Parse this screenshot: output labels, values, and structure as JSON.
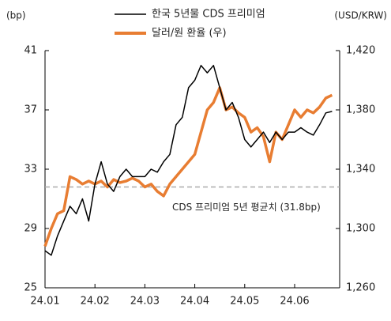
{
  "chart_data": {
    "type": "line",
    "y_unit_label": "(bp)",
    "y2_unit_label": "(USD/KRW)",
    "categories": [
      "24.01",
      null,
      null,
      null,
      null,
      null,
      null,
      null,
      "24.02",
      null,
      null,
      null,
      null,
      null,
      null,
      null,
      "24.03",
      null,
      null,
      null,
      null,
      null,
      null,
      null,
      "24.04",
      null,
      null,
      null,
      null,
      null,
      null,
      null,
      "24.05",
      null,
      null,
      null,
      null,
      null,
      null,
      null,
      "24.06",
      null,
      null,
      null,
      null,
      null,
      null
    ],
    "series": [
      {
        "name": "한국 5년물 CDS 프리미엄",
        "color": "#000000",
        "axis": "y",
        "values": [
          27.5,
          27.2,
          28.5,
          29.5,
          30.5,
          30,
          31,
          29.5,
          32,
          33.5,
          32,
          31.5,
          32.5,
          33,
          32.5,
          32.5,
          32.5,
          33,
          32.8,
          33.5,
          34,
          36,
          36.5,
          38.5,
          39,
          40,
          39.5,
          40,
          38.5,
          37,
          37.5,
          36.5,
          35,
          34.5,
          35,
          35.5,
          34.8,
          35.5,
          35,
          35.5,
          35.5,
          35.8,
          35.5,
          35.3,
          36,
          36.8,
          36.9
        ]
      },
      {
        "name": "달러/원 환율 (우)",
        "color": "#e87d32",
        "axis": "y2",
        "values": [
          1288,
          1300,
          1310,
          1312,
          1335,
          1333,
          1330,
          1332,
          1330,
          1332,
          1328,
          1333,
          1331,
          1332,
          1334,
          1332,
          1328,
          1330,
          1325,
          1322,
          1330,
          1335,
          1340,
          1345,
          1350,
          1365,
          1380,
          1385,
          1395,
          1380,
          1382,
          1378,
          1375,
          1365,
          1368,
          1362,
          1345,
          1365,
          1360,
          1370,
          1380,
          1375,
          1380,
          1378,
          1382,
          1388,
          1390
        ]
      }
    ],
    "ylim": [
      25,
      41
    ],
    "yticks": [
      25,
      29,
      33,
      37,
      41
    ],
    "y2lim": [
      1260,
      1420
    ],
    "y2ticks": [
      {
        "value": 1260,
        "label": "1,260"
      },
      {
        "value": 1300,
        "label": "1,300"
      },
      {
        "value": 1340,
        "label": "1,340"
      },
      {
        "value": 1380,
        "label": "1,380"
      },
      {
        "value": 1420,
        "label": "1,420"
      }
    ],
    "reference": {
      "value": 31.8,
      "label": "CDS 프리미엄 5년 평균치 (31.8bp)",
      "color": "#aaaaaa"
    }
  }
}
